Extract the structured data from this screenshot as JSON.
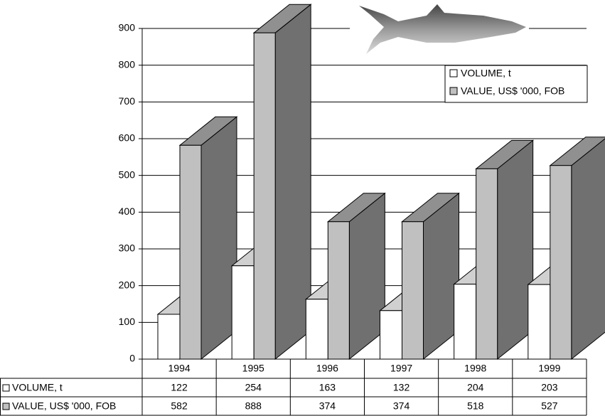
{
  "chart_data": {
    "type": "bar3d",
    "categories": [
      "1994",
      "1995",
      "1996",
      "1997",
      "1998",
      "1999"
    ],
    "series": [
      {
        "name": "VOLUME, t",
        "color": "#ffffff",
        "values": [
          122,
          254,
          163,
          132,
          204,
          203
        ]
      },
      {
        "name": "VALUE, US$ '000, FOB",
        "color": "#c0c0c0",
        "values": [
          582,
          888,
          374,
          374,
          518,
          527
        ]
      }
    ],
    "ylim": [
      0,
      900
    ],
    "yticks": [
      0,
      100,
      200,
      300,
      400,
      500,
      600,
      700,
      800,
      900
    ],
    "grid": true,
    "legend": "upper right",
    "data_table": true
  }
}
